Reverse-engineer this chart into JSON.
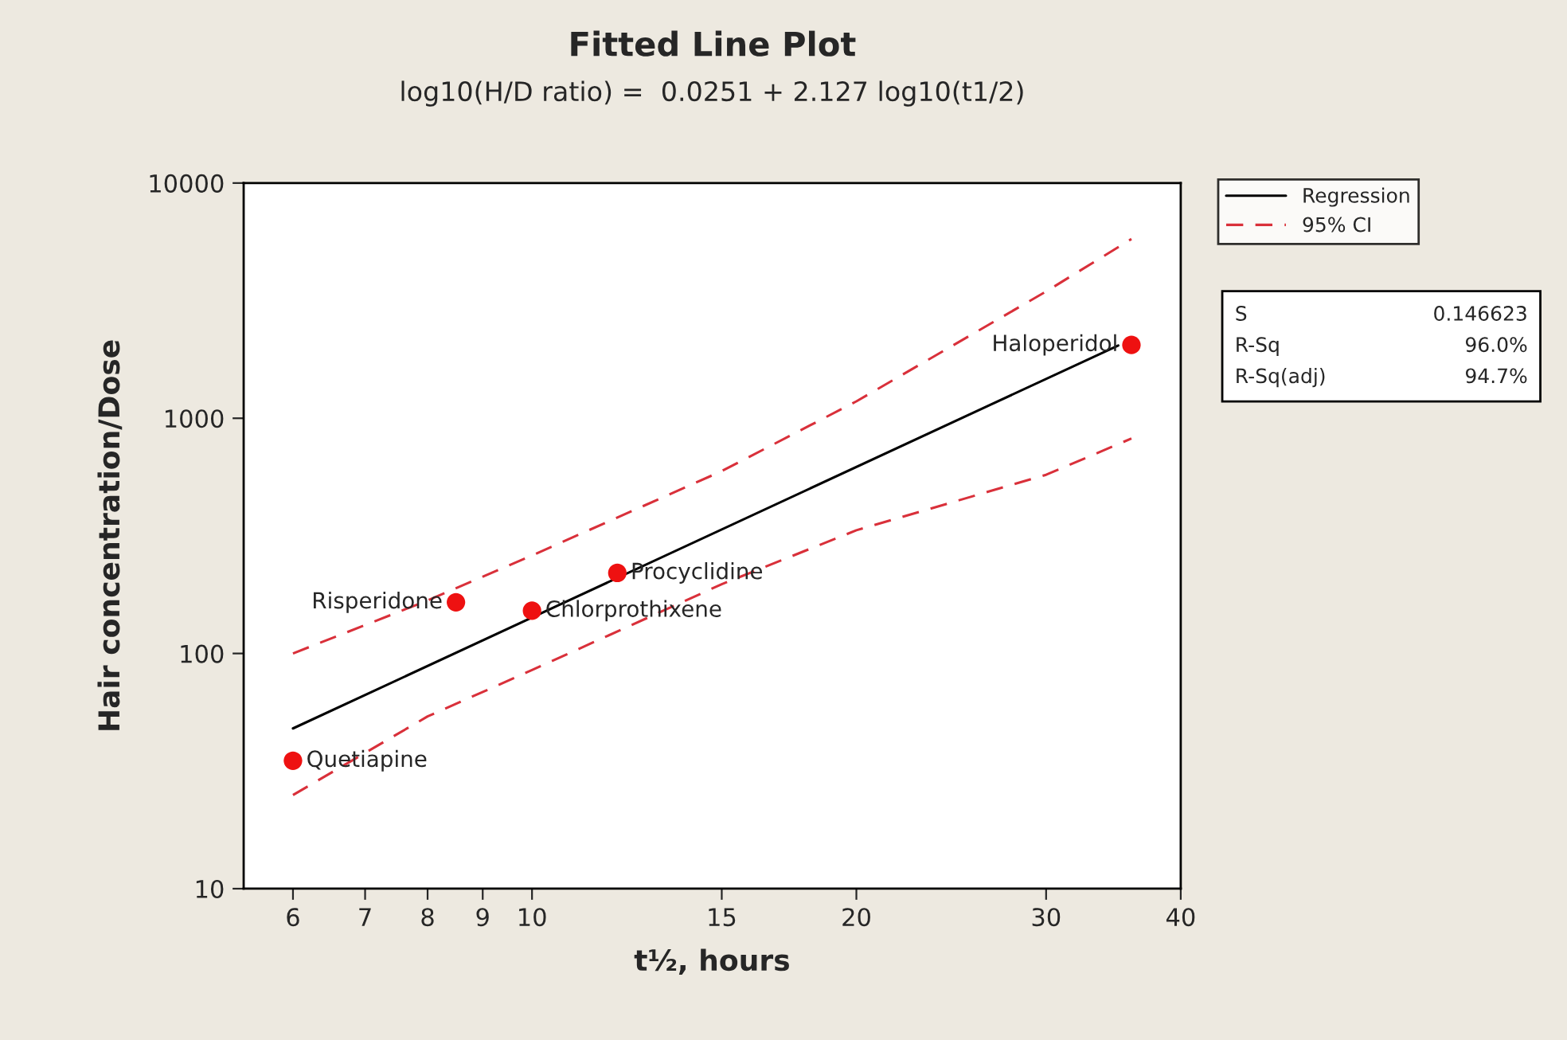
{
  "chart_data": {
    "type": "scatter",
    "title": "Fitted Line Plot",
    "subtitle": "log10(H/D ratio) =  0.0251 + 2.127 log10(t1/2)",
    "xlabel": "t½, hours",
    "ylabel": "Hair concentration/Dose",
    "log": "xy",
    "xlim": [
      5.4,
      40
    ],
    "ylim": [
      10,
      10000
    ],
    "xticks": [
      6,
      7,
      8,
      9,
      10,
      15,
      20,
      30,
      40
    ],
    "yticks": [
      10,
      100,
      1000,
      10000
    ],
    "grid": false,
    "legend": "top right",
    "series": [
      {
        "color": "#ee1111",
        "marker": "circle",
        "x": [
          6,
          8.5,
          10,
          12,
          36
        ],
        "values": [
          35,
          165,
          152,
          220,
          2050
        ]
      },
      {
        "type": "line",
        "name": "Regression",
        "color": "#000000",
        "line_style": "solid",
        "marker": "none",
        "x": [
          6,
          35
        ],
        "values": [
          48,
          2040
        ]
      },
      {
        "type": "line",
        "name": "95% CI",
        "color": "#d9303a",
        "line_style": "dashed",
        "marker": "none",
        "x": [
          6,
          8,
          10,
          15,
          20,
          30,
          36
        ],
        "values": [
          100,
          168,
          261,
          596,
          1180,
          3460,
          5780
        ]
      },
      {
        "type": "line",
        "color": "#d9303a",
        "line_style": "dashed",
        "marker": "none",
        "x": [
          6,
          8,
          10,
          15,
          20,
          30,
          36
        ],
        "values": [
          25,
          54,
          85,
          197,
          334,
          575,
          820
        ]
      }
    ],
    "annotations": [
      "S",
      "0.146623",
      "R-Sq",
      "96.0%",
      "R-Sq(adj)",
      "94.7%",
      {
        "text": "Quetiapine",
        "x": 6,
        "y": 35
      },
      {
        "text": "Risperidone",
        "x": 8.5,
        "y": 165
      },
      {
        "text": "Chlorprothixene",
        "x": 10,
        "y": 152
      },
      {
        "text": "Procyclidine",
        "x": 12,
        "y": 220
      },
      {
        "text": "Haloperidol",
        "x": 36,
        "y": 2050
      }
    ]
  }
}
